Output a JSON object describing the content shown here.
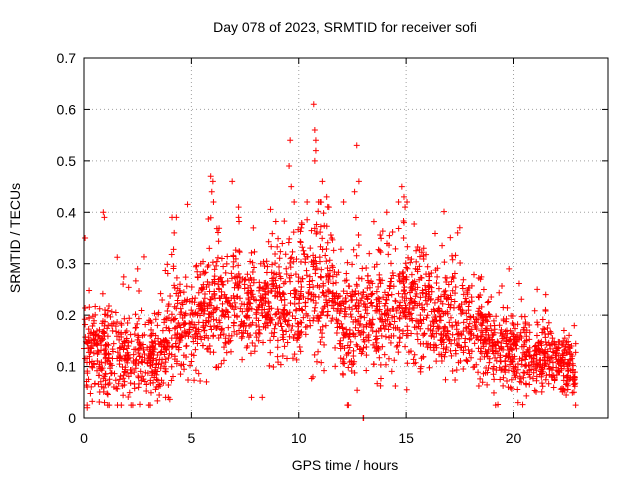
{
  "chart_data": {
    "type": "scatter",
    "title": "Day 078 of 2023, SRMTID for receiver sofi",
    "xlabel": "GPS time / hours",
    "ylabel": "SRMTID / TECUs",
    "xlim": [
      0,
      24.4
    ],
    "ylim": [
      0,
      0.7
    ],
    "xticks": [
      0,
      5,
      10,
      15,
      20
    ],
    "yticks": [
      0,
      0.1,
      0.2,
      0.3,
      0.4,
      0.5,
      0.6,
      0.7
    ],
    "xtick_labels": [
      "0",
      "5",
      "10",
      "15",
      "20"
    ],
    "ytick_labels": [
      "0",
      "0.1",
      "0.2",
      "0.3",
      "0.4",
      "0.5",
      "0.6",
      "0.7"
    ],
    "grid": true,
    "marker": "+",
    "series_color": "#ff0000",
    "envelope": {
      "x": [
        0,
        0.5,
        1,
        1.5,
        2,
        2.5,
        3,
        3.5,
        4,
        4.5,
        5,
        5.5,
        6,
        6.5,
        7,
        7.5,
        8,
        8.5,
        9,
        9.5,
        10,
        10.5,
        11,
        11.5,
        12,
        12.5,
        13,
        13.5,
        14,
        14.5,
        15,
        15.5,
        16,
        16.5,
        17,
        17.5,
        18,
        18.5,
        19,
        19.5,
        20,
        20.5,
        21,
        21.5,
        22,
        22.5,
        22.9
      ],
      "center": [
        0.13,
        0.12,
        0.13,
        0.12,
        0.12,
        0.12,
        0.12,
        0.12,
        0.16,
        0.17,
        0.17,
        0.2,
        0.22,
        0.22,
        0.22,
        0.22,
        0.22,
        0.23,
        0.22,
        0.22,
        0.23,
        0.25,
        0.25,
        0.26,
        0.17,
        0.17,
        0.2,
        0.2,
        0.21,
        0.22,
        0.23,
        0.22,
        0.2,
        0.19,
        0.2,
        0.19,
        0.18,
        0.16,
        0.15,
        0.13,
        0.12,
        0.12,
        0.12,
        0.12,
        0.11,
        0.1,
        0.1
      ],
      "spread": [
        0.07,
        0.07,
        0.07,
        0.06,
        0.05,
        0.05,
        0.05,
        0.05,
        0.07,
        0.07,
        0.07,
        0.08,
        0.08,
        0.08,
        0.08,
        0.07,
        0.07,
        0.07,
        0.08,
        0.08,
        0.08,
        0.09,
        0.09,
        0.08,
        0.08,
        0.08,
        0.07,
        0.07,
        0.08,
        0.08,
        0.08,
        0.07,
        0.07,
        0.07,
        0.07,
        0.07,
        0.07,
        0.06,
        0.05,
        0.05,
        0.05,
        0.05,
        0.04,
        0.04,
        0.04,
        0.04,
        0.04
      ]
    },
    "outliers": [
      {
        "x": 0.05,
        "y": 0.35
      },
      {
        "x": 0.9,
        "y": 0.4
      },
      {
        "x": 0.95,
        "y": 0.39
      },
      {
        "x": 4.1,
        "y": 0.39
      },
      {
        "x": 4.3,
        "y": 0.39
      },
      {
        "x": 4.2,
        "y": 0.36
      },
      {
        "x": 5.9,
        "y": 0.47
      },
      {
        "x": 6.0,
        "y": 0.46
      },
      {
        "x": 5.95,
        "y": 0.44
      },
      {
        "x": 6.9,
        "y": 0.46
      },
      {
        "x": 7.2,
        "y": 0.41
      },
      {
        "x": 7.2,
        "y": 0.39
      },
      {
        "x": 9.6,
        "y": 0.54
      },
      {
        "x": 9.55,
        "y": 0.49
      },
      {
        "x": 9.65,
        "y": 0.45
      },
      {
        "x": 10.7,
        "y": 0.61
      },
      {
        "x": 10.75,
        "y": 0.56
      },
      {
        "x": 10.8,
        "y": 0.54
      },
      {
        "x": 10.8,
        "y": 0.52
      },
      {
        "x": 10.75,
        "y": 0.5
      },
      {
        "x": 11.1,
        "y": 0.46
      },
      {
        "x": 11.3,
        "y": 0.43
      },
      {
        "x": 11.4,
        "y": 0.41
      },
      {
        "x": 12.7,
        "y": 0.53
      },
      {
        "x": 12.8,
        "y": 0.46
      },
      {
        "x": 12.6,
        "y": 0.44
      },
      {
        "x": 14.8,
        "y": 0.45
      },
      {
        "x": 14.9,
        "y": 0.43
      },
      {
        "x": 14.95,
        "y": 0.41
      },
      {
        "x": 14.9,
        "y": 0.38
      },
      {
        "x": 14.1,
        "y": 0.4
      },
      {
        "x": 17.4,
        "y": 0.36
      },
      {
        "x": 17.5,
        "y": 0.37
      },
      {
        "x": 19.8,
        "y": 0.29
      },
      {
        "x": 21.1,
        "y": 0.25
      },
      {
        "x": 21.5,
        "y": 0.24
      },
      {
        "x": 2.5,
        "y": 0.29
      },
      {
        "x": 13.0,
        "y": 0.0
      },
      {
        "x": 13.02,
        "y": 0.0
      },
      {
        "x": 0.15,
        "y": 0.02
      },
      {
        "x": 20.2,
        "y": 0.03
      },
      {
        "x": 3.8,
        "y": 0.04
      },
      {
        "x": 7.8,
        "y": 0.04
      },
      {
        "x": 8.3,
        "y": 0.04
      }
    ],
    "point_count": 2600,
    "seed": 78
  }
}
